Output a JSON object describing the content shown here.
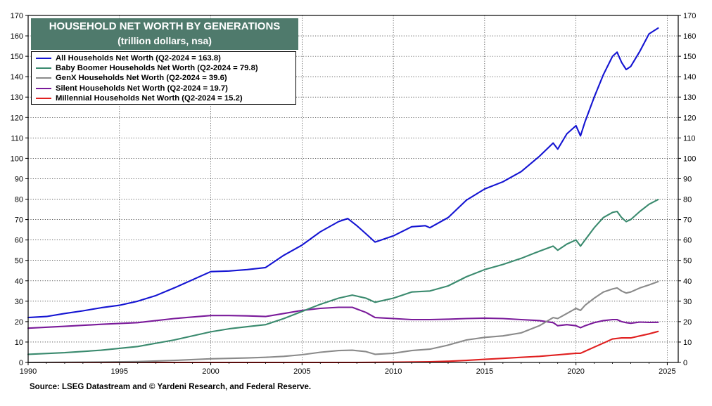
{
  "chart_data": {
    "type": "line",
    "title": "HOUSEHOLD NET WORTH BY GENERATIONS",
    "subtitle": "(trillion dollars, nsa)",
    "xlim": [
      1990,
      2025.6
    ],
    "ylim": [
      0,
      170
    ],
    "x_ticks": [
      1990,
      1995,
      2000,
      2005,
      2010,
      2015,
      2020,
      2025
    ],
    "y_ticks": [
      0,
      10,
      20,
      30,
      40,
      50,
      60,
      70,
      80,
      90,
      100,
      110,
      120,
      130,
      140,
      150,
      160,
      170
    ],
    "grid": true,
    "legend_position": "top-left",
    "source": "Source: LSEG Datastream and © Yardeni Research, and Federal Reserve.",
    "series": [
      {
        "name": "All Households Net Worth (Q2-2024 = 163.8)",
        "color": "#1414d2",
        "points": [
          [
            1990,
            22.0
          ],
          [
            1991,
            22.5
          ],
          [
            1992,
            24.0
          ],
          [
            1993,
            25.3
          ],
          [
            1994,
            26.8
          ],
          [
            1995,
            28.0
          ],
          [
            1996,
            30.0
          ],
          [
            1997,
            32.8
          ],
          [
            1998,
            36.5
          ],
          [
            1999,
            40.5
          ],
          [
            2000,
            44.5
          ],
          [
            2001,
            44.8
          ],
          [
            2002,
            45.5
          ],
          [
            2003,
            46.5
          ],
          [
            2004,
            52.5
          ],
          [
            2005,
            57.5
          ],
          [
            2006,
            64.0
          ],
          [
            2007,
            69.0
          ],
          [
            2007.5,
            70.5
          ],
          [
            2008,
            67.0
          ],
          [
            2008.5,
            63.0
          ],
          [
            2009,
            59.0
          ],
          [
            2010,
            62.0
          ],
          [
            2011,
            66.5
          ],
          [
            2011.75,
            67.0
          ],
          [
            2012,
            66.0
          ],
          [
            2013,
            71.0
          ],
          [
            2014,
            79.5
          ],
          [
            2015,
            85.0
          ],
          [
            2016,
            88.5
          ],
          [
            2017,
            93.5
          ],
          [
            2018,
            101.0
          ],
          [
            2018.75,
            107.5
          ],
          [
            2019,
            104.5
          ],
          [
            2019.5,
            112.0
          ],
          [
            2020,
            116.0
          ],
          [
            2020.25,
            111.0
          ],
          [
            2020.5,
            118.0
          ],
          [
            2021,
            130.0
          ],
          [
            2021.5,
            141.0
          ],
          [
            2022,
            150.0
          ],
          [
            2022.25,
            152.0
          ],
          [
            2022.5,
            147.0
          ],
          [
            2022.75,
            143.5
          ],
          [
            2023,
            145.0
          ],
          [
            2023.5,
            152.5
          ],
          [
            2024,
            161.0
          ],
          [
            2024.5,
            163.8
          ]
        ]
      },
      {
        "name": "Baby Boomer Households Net Worth (Q2-2024 = 79.8)",
        "color": "#3a8a6e",
        "points": [
          [
            1990,
            4.0
          ],
          [
            1992,
            4.8
          ],
          [
            1994,
            6.0
          ],
          [
            1996,
            7.8
          ],
          [
            1998,
            11.0
          ],
          [
            2000,
            15.0
          ],
          [
            2001,
            16.5
          ],
          [
            2002,
            17.5
          ],
          [
            2003,
            18.5
          ],
          [
            2004,
            21.5
          ],
          [
            2005,
            25.0
          ],
          [
            2006,
            28.5
          ],
          [
            2007,
            31.5
          ],
          [
            2007.75,
            33.0
          ],
          [
            2008.5,
            31.5
          ],
          [
            2009,
            29.5
          ],
          [
            2010,
            31.5
          ],
          [
            2011,
            34.5
          ],
          [
            2012,
            35.0
          ],
          [
            2013,
            37.5
          ],
          [
            2014,
            42.0
          ],
          [
            2015,
            45.5
          ],
          [
            2016,
            48.0
          ],
          [
            2017,
            51.0
          ],
          [
            2018,
            54.5
          ],
          [
            2018.75,
            57.0
          ],
          [
            2019,
            55.0
          ],
          [
            2019.5,
            58.0
          ],
          [
            2020,
            60.0
          ],
          [
            2020.25,
            57.0
          ],
          [
            2020.5,
            60.0
          ],
          [
            2021,
            66.0
          ],
          [
            2021.5,
            71.0
          ],
          [
            2022,
            73.5
          ],
          [
            2022.25,
            74.0
          ],
          [
            2022.5,
            71.0
          ],
          [
            2022.75,
            69.0
          ],
          [
            2023,
            70.0
          ],
          [
            2023.5,
            74.0
          ],
          [
            2024,
            77.5
          ],
          [
            2024.5,
            79.8
          ]
        ]
      },
      {
        "name": "GenX Households Net Worth (Q2-2024 = 39.6)",
        "color": "#8a8a8a",
        "points": [
          [
            1990,
            0.0
          ],
          [
            1994,
            0.2
          ],
          [
            1996,
            0.4
          ],
          [
            1998,
            1.0
          ],
          [
            2000,
            1.8
          ],
          [
            2002,
            2.2
          ],
          [
            2003,
            2.5
          ],
          [
            2004,
            3.0
          ],
          [
            2005,
            3.8
          ],
          [
            2006,
            5.0
          ],
          [
            2007,
            5.8
          ],
          [
            2007.75,
            6.0
          ],
          [
            2008.5,
            5.3
          ],
          [
            2009,
            4.0
          ],
          [
            2010,
            4.5
          ],
          [
            2011,
            5.8
          ],
          [
            2012,
            6.5
          ],
          [
            2013,
            8.5
          ],
          [
            2014,
            11.0
          ],
          [
            2015,
            12.3
          ],
          [
            2016,
            13.0
          ],
          [
            2017,
            14.5
          ],
          [
            2018,
            18.0
          ],
          [
            2018.75,
            22.0
          ],
          [
            2019,
            21.5
          ],
          [
            2019.5,
            24.0
          ],
          [
            2020,
            26.5
          ],
          [
            2020.25,
            25.5
          ],
          [
            2020.5,
            28.0
          ],
          [
            2021,
            31.5
          ],
          [
            2021.5,
            34.5
          ],
          [
            2022,
            36.0
          ],
          [
            2022.25,
            36.5
          ],
          [
            2022.5,
            35.0
          ],
          [
            2022.75,
            34.0
          ],
          [
            2023,
            34.5
          ],
          [
            2023.5,
            36.5
          ],
          [
            2024,
            38.0
          ],
          [
            2024.5,
            39.6
          ]
        ]
      },
      {
        "name": "Silent Households Net Worth (Q2-2024 = 19.7)",
        "color": "#7a1a9a",
        "points": [
          [
            1990,
            16.8
          ],
          [
            1992,
            17.7
          ],
          [
            1994,
            18.7
          ],
          [
            1996,
            19.5
          ],
          [
            1998,
            21.5
          ],
          [
            2000,
            23.0
          ],
          [
            2001,
            23.0
          ],
          [
            2002,
            22.8
          ],
          [
            2003,
            22.5
          ],
          [
            2004,
            24.0
          ],
          [
            2005,
            25.5
          ],
          [
            2006,
            26.5
          ],
          [
            2007,
            27.0
          ],
          [
            2007.75,
            27.0
          ],
          [
            2008.5,
            24.5
          ],
          [
            2009,
            22.0
          ],
          [
            2010,
            21.5
          ],
          [
            2011,
            21.0
          ],
          [
            2012,
            21.0
          ],
          [
            2013,
            21.2
          ],
          [
            2014,
            21.5
          ],
          [
            2015,
            21.7
          ],
          [
            2016,
            21.5
          ],
          [
            2017,
            21.0
          ],
          [
            2018,
            20.5
          ],
          [
            2018.75,
            19.5
          ],
          [
            2019,
            18.0
          ],
          [
            2019.5,
            18.5
          ],
          [
            2020,
            18.0
          ],
          [
            2020.25,
            17.0
          ],
          [
            2020.5,
            18.0
          ],
          [
            2021,
            19.5
          ],
          [
            2021.5,
            20.5
          ],
          [
            2022,
            21.0
          ],
          [
            2022.25,
            21.0
          ],
          [
            2022.5,
            20.0
          ],
          [
            2022.75,
            19.5
          ],
          [
            2023,
            19.2
          ],
          [
            2023.5,
            19.8
          ],
          [
            2024,
            19.6
          ],
          [
            2024.5,
            19.7
          ]
        ]
      },
      {
        "name": "Millennial Households Net Worth (Q2-2024 = 15.2)",
        "color": "#e02020",
        "points": [
          [
            1990,
            0.0
          ],
          [
            2008,
            0.0
          ],
          [
            2010,
            0.1
          ],
          [
            2012,
            0.3
          ],
          [
            2013,
            0.6
          ],
          [
            2014,
            1.0
          ],
          [
            2015,
            1.5
          ],
          [
            2016,
            2.0
          ],
          [
            2017,
            2.5
          ],
          [
            2018,
            3.0
          ],
          [
            2019,
            3.7
          ],
          [
            2020,
            4.5
          ],
          [
            2020.25,
            4.5
          ],
          [
            2020.5,
            5.5
          ],
          [
            2021,
            7.5
          ],
          [
            2021.5,
            9.5
          ],
          [
            2022,
            11.5
          ],
          [
            2022.5,
            12.0
          ],
          [
            2023,
            12.0
          ],
          [
            2023.5,
            13.0
          ],
          [
            2024,
            14.0
          ],
          [
            2024.5,
            15.2
          ]
        ]
      }
    ]
  }
}
